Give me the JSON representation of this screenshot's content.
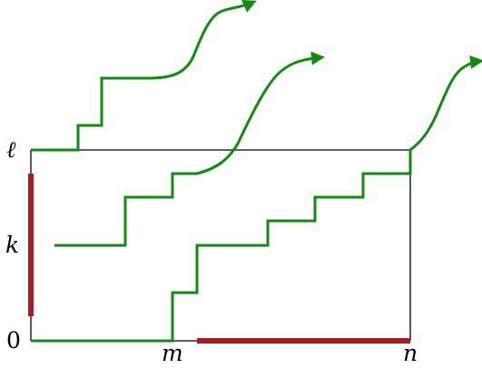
{
  "labels": {
    "ell": "ℓ",
    "k": "k",
    "zero": "0",
    "m": "m",
    "n": "n"
  },
  "colors": {
    "path": "#138a13",
    "highlight": "#a51e1e",
    "frame": "#000000"
  }
}
